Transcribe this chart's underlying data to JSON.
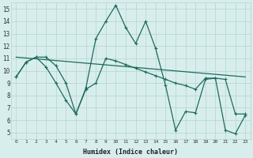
{
  "xlabel": "Humidex (Indice chaleur)",
  "bg_color": "#d8eeed",
  "grid_color": "#b8d8d4",
  "line_color": "#1e6b5e",
  "xlim": [
    -0.5,
    23.5
  ],
  "ylim": [
    4.5,
    15.5
  ],
  "xticks": [
    0,
    1,
    2,
    3,
    4,
    5,
    6,
    7,
    8,
    9,
    10,
    11,
    12,
    13,
    14,
    15,
    16,
    17,
    18,
    19,
    20,
    21,
    22,
    23
  ],
  "yticks": [
    5,
    6,
    7,
    8,
    9,
    10,
    11,
    12,
    13,
    14,
    15
  ],
  "curve1_x": [
    0,
    1,
    2,
    3,
    4,
    5,
    6,
    7,
    8,
    9,
    10,
    11,
    12,
    13,
    14,
    15,
    16,
    17,
    18,
    19,
    20,
    21,
    22,
    23
  ],
  "curve1_y": [
    9.5,
    10.7,
    11.1,
    10.3,
    9.0,
    7.6,
    6.5,
    8.5,
    9.0,
    11.0,
    10.8,
    10.5,
    10.2,
    9.9,
    9.6,
    9.3,
    9.0,
    8.8,
    8.5,
    9.4,
    9.4,
    9.3,
    6.5,
    6.5
  ],
  "curve2_x": [
    0,
    1,
    2,
    3,
    4,
    5,
    6,
    7,
    8,
    9,
    10,
    11,
    12,
    13,
    14,
    15,
    16,
    17,
    18,
    19,
    20,
    21,
    22,
    23
  ],
  "curve2_y": [
    9.5,
    10.7,
    11.1,
    11.1,
    10.4,
    9.0,
    6.5,
    8.6,
    12.6,
    14.0,
    15.3,
    13.5,
    12.2,
    14.0,
    11.8,
    8.8,
    5.2,
    6.7,
    6.6,
    9.3,
    9.4,
    5.2,
    4.9,
    6.4
  ],
  "trend_x": [
    0,
    23
  ],
  "trend_y": [
    11.1,
    9.5
  ]
}
